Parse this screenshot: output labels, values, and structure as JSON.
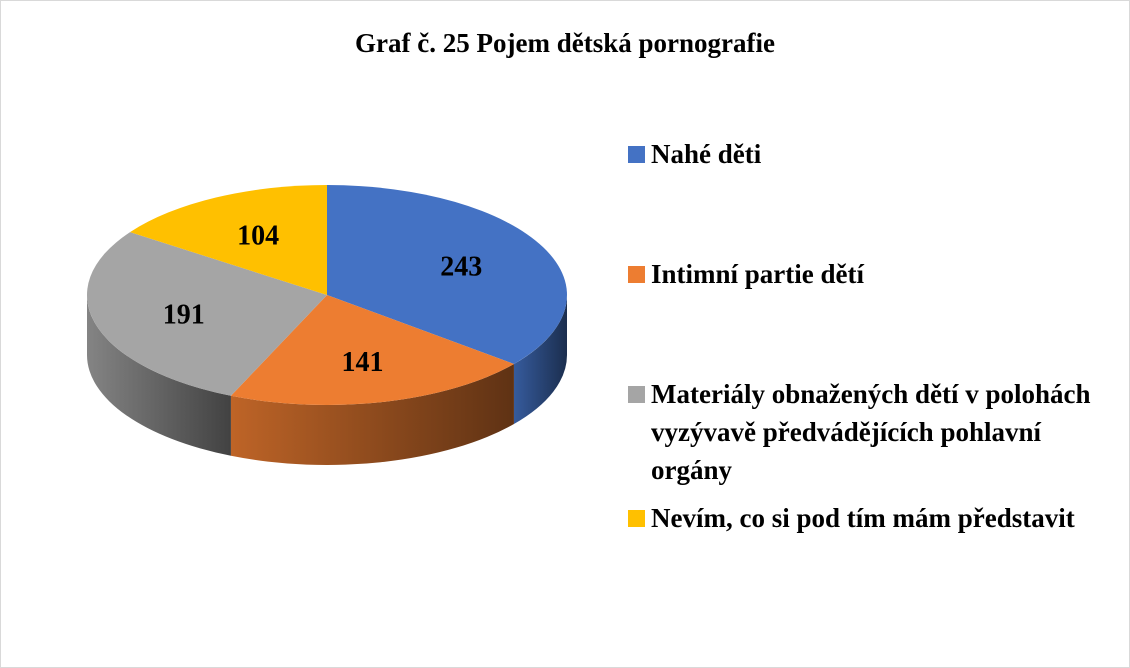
{
  "chart_data": {
    "type": "pie",
    "title": "Graf č. 25 Pojem dětská pornografie",
    "categories": [
      "Nahé děti",
      "Intimní partie dětí",
      "Materiály obnažených dětí v polohách vyzývavě předvádějících pohlavní orgány",
      "Nevím, co si pod tím mám představit"
    ],
    "values": [
      243,
      141,
      191,
      104
    ],
    "colors": [
      "#4472c4",
      "#ed7d31",
      "#a5a5a5",
      "#ffc000"
    ],
    "legend": "right"
  }
}
